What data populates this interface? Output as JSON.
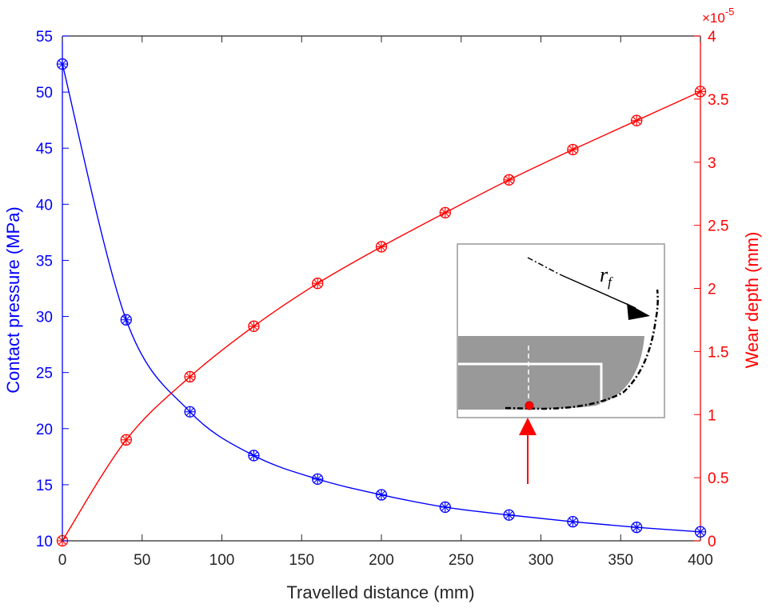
{
  "chart_data": {
    "type": "line",
    "title": "",
    "xlabel": "Travelled distance (mm)",
    "ylabel_left": "Contact pressure (MPa)",
    "ylabel_right": "Wear depth (mm)",
    "right_axis_multiplier": "×10",
    "right_axis_exponent": "-5",
    "xlim": [
      0,
      400
    ],
    "ylim_left": [
      10,
      55
    ],
    "ylim_right": [
      0,
      4
    ],
    "x_ticks": [
      "0",
      "50",
      "100",
      "150",
      "200",
      "250",
      "300",
      "350",
      "400"
    ],
    "y_left_ticks": [
      "10",
      "15",
      "20",
      "25",
      "30",
      "35",
      "40",
      "45",
      "50",
      "55"
    ],
    "y_right_ticks": [
      "0",
      "0.5",
      "1",
      "1.5",
      "2",
      "2.5",
      "3",
      "3.5",
      "4"
    ],
    "grid": false,
    "series": [
      {
        "axis": "left",
        "color": "#0000ff",
        "marker": "circle-star",
        "x": [
          0,
          40,
          80,
          120,
          160,
          200,
          240,
          280,
          320,
          360,
          400
        ],
        "values": [
          52.5,
          29.7,
          21.5,
          17.6,
          15.5,
          14.1,
          13.0,
          12.3,
          11.7,
          11.2,
          10.8
        ]
      },
      {
        "axis": "right",
        "color": "#ff0000",
        "marker": "circle-star",
        "x": [
          0,
          40,
          80,
          120,
          160,
          200,
          240,
          280,
          320,
          360,
          400
        ],
        "values": [
          0.0,
          0.8,
          1.3,
          1.7,
          2.04,
          2.33,
          2.6,
          2.86,
          3.1,
          3.33,
          3.56
        ]
      }
    ],
    "inset": {
      "label": "r",
      "label_subscript": "f"
    }
  },
  "colors": {
    "left_axis": "#0000ff",
    "right_axis": "#ff0000",
    "axis_black": "#262626",
    "inset_fill": "#999999"
  }
}
